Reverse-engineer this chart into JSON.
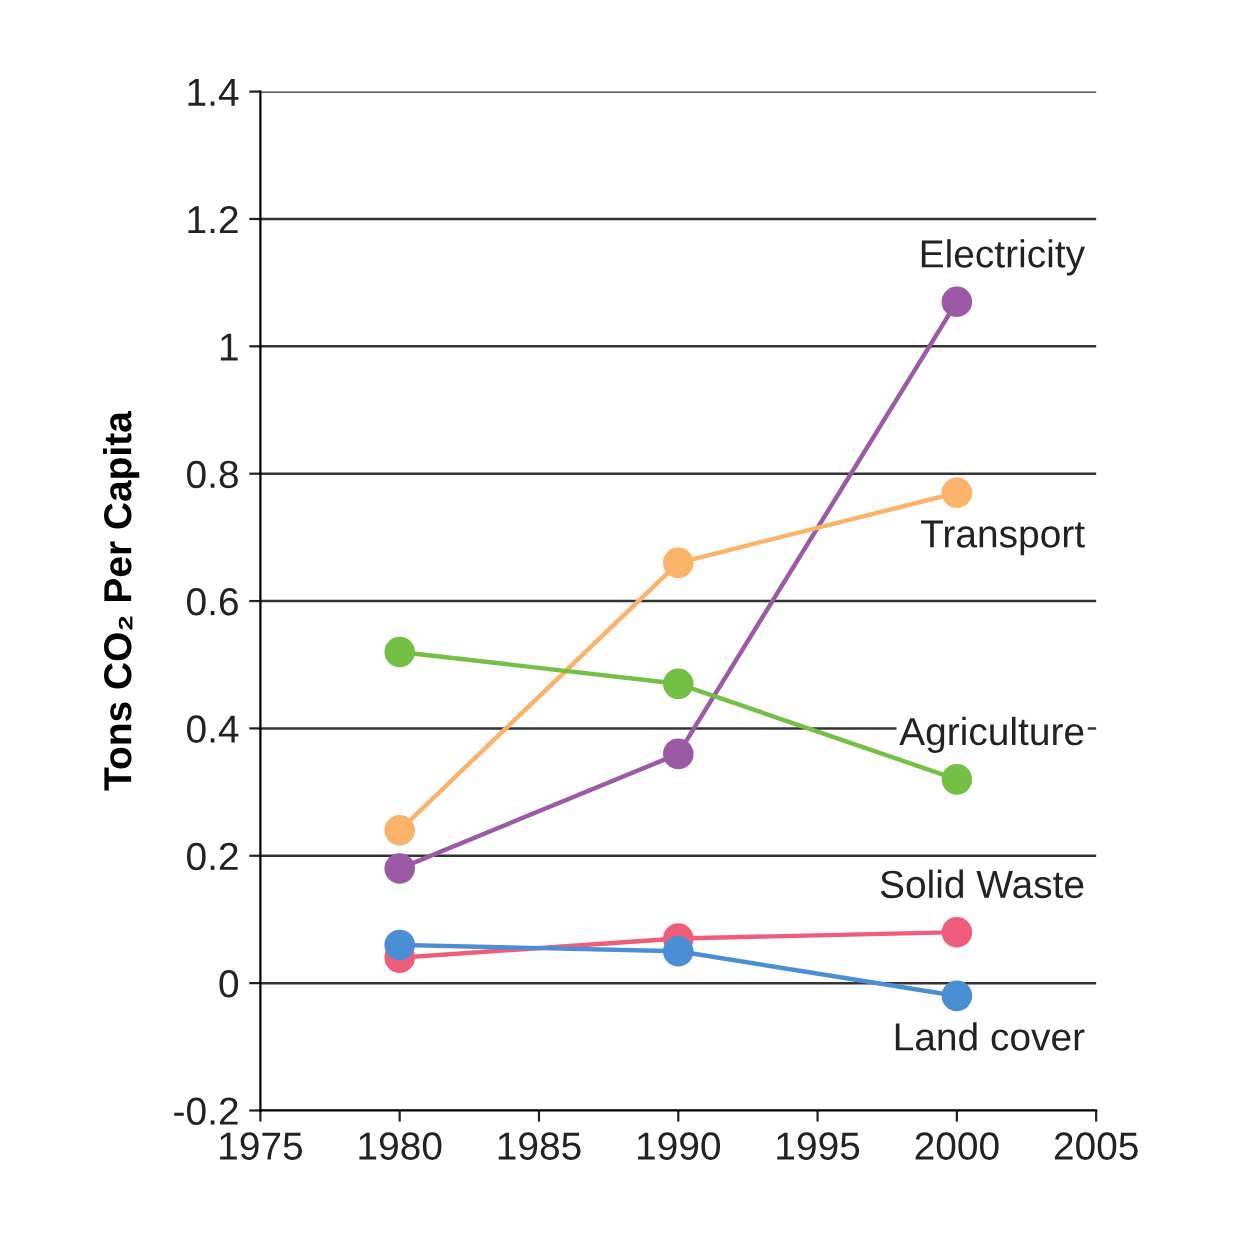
{
  "chart_data": {
    "type": "line",
    "ylabel": "Tons CO₂ Per Capita",
    "x": [
      1980,
      1990,
      2000
    ],
    "series": [
      {
        "name": "Electricity",
        "color": "#9b59a6",
        "values": [
          0.18,
          0.36,
          1.07
        ]
      },
      {
        "name": "Transport",
        "color": "#fbb36a",
        "values": [
          0.24,
          0.66,
          0.77
        ]
      },
      {
        "name": "Agriculture",
        "color": "#74c044",
        "values": [
          0.52,
          0.47,
          0.32
        ]
      },
      {
        "name": "Solid Waste",
        "color": "#ef5d7b",
        "values": [
          0.04,
          0.07,
          0.08
        ]
      },
      {
        "name": "Land cover",
        "color": "#4a8fd4",
        "values": [
          0.06,
          0.05,
          -0.02
        ]
      }
    ],
    "xlim": [
      1975,
      2005
    ],
    "xticks": [
      1975,
      1980,
      1985,
      1990,
      1995,
      2000,
      2005
    ],
    "ylim": [
      -0.2,
      1.4
    ],
    "yticks": [
      -0.2,
      0,
      0.2,
      0.4,
      0.6,
      0.8,
      1,
      1.2,
      1.4
    ],
    "grid": "y",
    "marker": "circle",
    "line_style": "solid"
  }
}
